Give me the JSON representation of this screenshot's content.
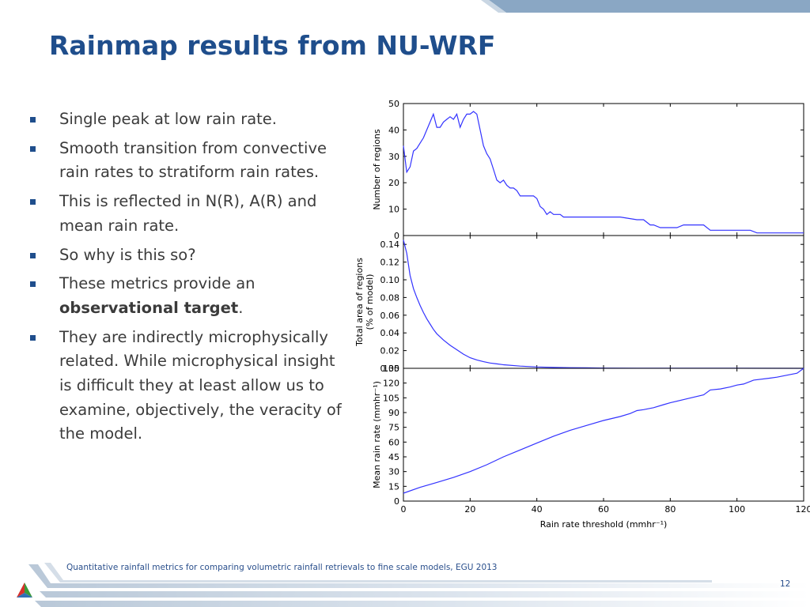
{
  "slide": {
    "title": "Rainmap results from NU-WRF",
    "bullets": [
      {
        "text": "Single peak at low rain rate."
      },
      {
        "text": "Smooth transition from convective rain rates to stratiform rain rates."
      },
      {
        "text": "This is reflected in N(R), A(R) and mean rain rate."
      },
      {
        "text": "So why is this so?"
      },
      {
        "pre": "These metrics provide an ",
        "bold": "observational target",
        "post": "."
      },
      {
        "text": "They are indirectly microphysically related. While microphysical insight is difficult they at least allow us to examine, objectively, the veracity of the model."
      }
    ],
    "footer": "Quantitative rainfall metrics for comparing volumetric rainfall retrievals to fine scale models, EGU 2013",
    "page_number": "12",
    "colors": {
      "title": "#1f4e8c",
      "text": "#3b3b3b",
      "bullet": "#1f4e8c",
      "accent_bar": "#8aa7c4",
      "series": "#3333ff"
    }
  },
  "chart_data": [
    {
      "type": "line",
      "ylabel": "Number of regions",
      "ylim": [
        0,
        50
      ],
      "yticks": [
        "0",
        "10",
        "20",
        "30",
        "40",
        "50"
      ],
      "xlim": [
        0,
        120
      ],
      "x": [
        0,
        1,
        2,
        3,
        4,
        5,
        6,
        7,
        8,
        9,
        10,
        11,
        12,
        13,
        14,
        15,
        16,
        17,
        18,
        19,
        20,
        21,
        22,
        23,
        24,
        25,
        26,
        27,
        28,
        29,
        30,
        31,
        32,
        33,
        34,
        35,
        36,
        37,
        38,
        39,
        40,
        41,
        42,
        43,
        44,
        45,
        46,
        47,
        48,
        49,
        50,
        51,
        52,
        53,
        54,
        55,
        56,
        57,
        58,
        59,
        60,
        65,
        70,
        72,
        74,
        75,
        77,
        80,
        82,
        84,
        90,
        92,
        95,
        100,
        104,
        106,
        110,
        120
      ],
      "values": [
        34,
        24,
        26,
        32,
        33,
        35,
        37,
        40,
        43,
        46,
        41,
        41,
        43,
        44,
        45,
        44,
        46,
        41,
        44,
        46,
        46,
        47,
        46,
        40,
        34,
        31,
        29,
        25,
        21,
        20,
        21,
        19,
        18,
        18,
        17,
        15,
        15,
        15,
        15,
        15,
        14,
        11,
        10,
        8,
        9,
        8,
        8,
        8,
        7,
        7,
        7,
        7,
        7,
        7,
        7,
        7,
        7,
        7,
        7,
        7,
        7,
        7,
        6,
        6,
        4,
        4,
        3,
        3,
        3,
        4,
        4,
        2,
        2,
        2,
        2,
        1,
        1,
        1
      ]
    },
    {
      "type": "line",
      "ylabel": "Total area of regions (% of model)",
      "ylim": [
        0,
        0.15
      ],
      "yticks": [
        "0.00",
        "0.02",
        "0.04",
        "0.06",
        "0.08",
        "0.10",
        "0.12",
        "0.14"
      ],
      "xlim": [
        0,
        120
      ],
      "x": [
        0,
        1,
        2,
        3,
        4,
        5,
        6,
        7,
        8,
        9,
        10,
        12,
        14,
        16,
        18,
        20,
        22,
        24,
        26,
        28,
        30,
        35,
        40,
        45,
        50,
        55,
        60,
        70,
        80,
        100,
        120
      ],
      "values": [
        0.145,
        0.13,
        0.105,
        0.09,
        0.08,
        0.071,
        0.063,
        0.056,
        0.05,
        0.044,
        0.039,
        0.032,
        0.026,
        0.021,
        0.016,
        0.012,
        0.0095,
        0.0075,
        0.006,
        0.005,
        0.004,
        0.0025,
        0.0015,
        0.001,
        0.0007,
        0.0005,
        0.0003,
        0.0002,
        0.0001,
        5e-05,
        2e-05
      ]
    },
    {
      "type": "line",
      "xlabel": "Rain rate threshold (mmhr⁻¹)",
      "ylabel": "Mean rain rate (mmhr⁻¹)",
      "ylim": [
        0,
        135
      ],
      "yticks": [
        "0",
        "15",
        "30",
        "45",
        "60",
        "75",
        "90",
        "105",
        "120",
        "135"
      ],
      "xlim": [
        0,
        120
      ],
      "xticks": [
        "0",
        "20",
        "40",
        "60",
        "80",
        "100",
        "120"
      ],
      "x": [
        0,
        5,
        10,
        15,
        20,
        25,
        30,
        35,
        40,
        45,
        50,
        55,
        60,
        65,
        68,
        70,
        72,
        75,
        78,
        80,
        85,
        90,
        92,
        95,
        98,
        100,
        102,
        105,
        110,
        112,
        115,
        118,
        120
      ],
      "values": [
        8,
        14,
        19,
        24,
        30,
        37,
        45,
        52,
        59,
        66,
        72,
        77,
        82,
        86,
        89,
        92,
        93,
        95,
        98,
        100,
        104,
        108,
        113,
        114,
        116,
        118,
        119,
        123,
        125,
        126,
        128,
        130,
        135
      ]
    }
  ]
}
